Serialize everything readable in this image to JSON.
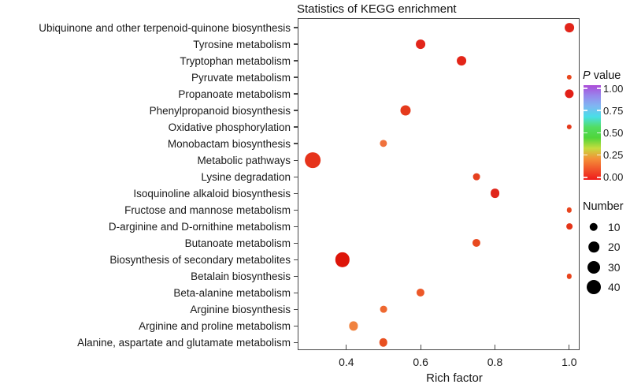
{
  "chart": {
    "title": "Statistics of KEGG enrichment",
    "xlabel": "Rich factor"
  },
  "chart_data": {
    "type": "scatter",
    "title": "Statistics of KEGG enrichment",
    "xlabel": "Rich factor",
    "ylabel": "",
    "grid": false,
    "legend_position": "right",
    "xlim": [
      0.27,
      1.03
    ],
    "x_ticks": [
      0.4,
      0.6,
      0.8,
      1.0
    ],
    "x_tick_labels": [
      "0.4",
      "0.6",
      "0.8",
      "1.0"
    ],
    "size_encoding": "Number",
    "color_encoding": "P value",
    "points": [
      {
        "pathway": "Ubiquinone and other terpenoid-quinone biosynthesis",
        "rich_factor": 1.0,
        "number": 14,
        "p_value": 0.02,
        "color": "#E2251A"
      },
      {
        "pathway": "Tyrosine metabolism",
        "rich_factor": 0.6,
        "number": 14,
        "p_value": 0.02,
        "color": "#E2251A"
      },
      {
        "pathway": "Tryptophan metabolism",
        "rich_factor": 0.71,
        "number": 14,
        "p_value": 0.02,
        "color": "#E32518"
      },
      {
        "pathway": "Pyruvate metabolism",
        "rich_factor": 1.0,
        "number": 2,
        "p_value": 0.06,
        "color": "#E8481E"
      },
      {
        "pathway": "Propanoate metabolism",
        "rich_factor": 1.0,
        "number": 12,
        "p_value": 0.02,
        "color": "#E22018"
      },
      {
        "pathway": "Phenylpropanoid biosynthesis",
        "rich_factor": 0.56,
        "number": 18,
        "p_value": 0.04,
        "color": "#E53A1C"
      },
      {
        "pathway": "Oxidative phosphorylation",
        "rich_factor": 1.0,
        "number": 2,
        "p_value": 0.03,
        "color": "#E43A1C"
      },
      {
        "pathway": "Monobactam biosynthesis",
        "rich_factor": 0.5,
        "number": 7,
        "p_value": 0.12,
        "color": "#F0713C"
      },
      {
        "pathway": "Metabolic pathways",
        "rich_factor": 0.31,
        "number": 50,
        "p_value": 0.03,
        "color": "#E6331B"
      },
      {
        "pathway": "Lysine degradation",
        "rich_factor": 0.75,
        "number": 6,
        "p_value": 0.05,
        "color": "#E6401E"
      },
      {
        "pathway": "Isoquinoline alkaloid biosynthesis",
        "rich_factor": 0.8,
        "number": 14,
        "p_value": 0.02,
        "color": "#E0251A"
      },
      {
        "pathway": "Fructose and mannose metabolism",
        "rich_factor": 1.0,
        "number": 2,
        "p_value": 0.05,
        "color": "#E8451E"
      },
      {
        "pathway": "D-arginine and D-ornithine metabolism",
        "rich_factor": 1.0,
        "number": 4,
        "p_value": 0.03,
        "color": "#E43418"
      },
      {
        "pathway": "Butanoate metabolism",
        "rich_factor": 0.75,
        "number": 9,
        "p_value": 0.06,
        "color": "#E8491F"
      },
      {
        "pathway": "Biosynthesis of secondary metabolites",
        "rich_factor": 0.39,
        "number": 42,
        "p_value": 0.0,
        "color": "#DD1509"
      },
      {
        "pathway": "Betalain biosynthesis",
        "rich_factor": 1.0,
        "number": 2,
        "p_value": 0.05,
        "color": "#E8441C"
      },
      {
        "pathway": "Beta-alanine metabolism",
        "rich_factor": 0.6,
        "number": 9,
        "p_value": 0.08,
        "color": "#EC5828"
      },
      {
        "pathway": "Arginine biosynthesis",
        "rich_factor": 0.5,
        "number": 6,
        "p_value": 0.1,
        "color": "#EE6830"
      },
      {
        "pathway": "Arginine and proline metabolism",
        "rich_factor": 0.42,
        "number": 12,
        "p_value": 0.15,
        "color": "#F0823F"
      },
      {
        "pathway": "Alanine, aspartate and glutamate metabolism",
        "rich_factor": 0.5,
        "number": 10,
        "p_value": 0.06,
        "color": "#E85020"
      }
    ]
  },
  "legends": {
    "pvalue": {
      "title_p": "P",
      "title_rest": " value",
      "tick_labels": [
        "1.00",
        "0.75",
        "0.50",
        "0.25",
        "0.00"
      ],
      "gradient_top_to_bottom": [
        "#AC4BD8",
        "#9787EC",
        "#7FB7F2",
        "#49DFE8",
        "#52DD62",
        "#4FD53A",
        "#C6DC3E",
        "#F49038",
        "#F1552B",
        "#EF1B1B"
      ]
    },
    "number": {
      "title": "Number",
      "items": [
        {
          "label": "10",
          "value": 10
        },
        {
          "label": "20",
          "value": 20
        },
        {
          "label": "30",
          "value": 30
        },
        {
          "label": "40",
          "value": 40
        }
      ]
    }
  }
}
